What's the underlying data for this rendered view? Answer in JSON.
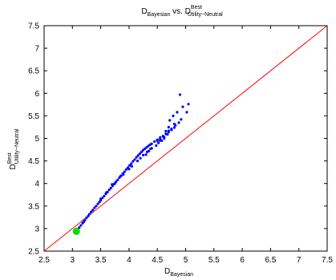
{
  "chart_data": {
    "type": "scatter",
    "title": {
      "main": "D",
      "main_sub": "Bayesian",
      "vs": " vs. D",
      "vs_sup": "Best",
      "vs_sub": "Utility−Neutral"
    },
    "xlabel": {
      "main": "D",
      "sub": "Bayesian"
    },
    "ylabel": {
      "main": "D",
      "sup": "Best",
      "sub": "Utility−Neutral"
    },
    "xlim": [
      2.5,
      7.5
    ],
    "ylim": [
      2.5,
      7.5
    ],
    "xticks": [
      "2.5",
      "3",
      "3.5",
      "4",
      "4.5",
      "5",
      "5.5",
      "6",
      "6.5",
      "7",
      "7.5"
    ],
    "yticks": [
      "2.5",
      "3",
      "3.5",
      "4",
      "4.5",
      "5",
      "5.5",
      "6",
      "6.5",
      "7",
      "7.5"
    ],
    "grid": false,
    "reference_line": {
      "x": [
        2.5,
        7.5
      ],
      "y": [
        2.5,
        7.5
      ],
      "color": "#ff0000"
    },
    "highlight_point": {
      "x": 3.07,
      "y": 2.94,
      "color": "#00dd00"
    },
    "point_color": "#0000ff",
    "series": [
      {
        "x": [
          3.12,
          3.15,
          3.18,
          3.2,
          3.22,
          3.25,
          3.28,
          3.3,
          3.33,
          3.36,
          3.39,
          3.42,
          3.45,
          3.48,
          3.5,
          3.53,
          3.56,
          3.59,
          3.62,
          3.65,
          3.68,
          3.71,
          3.74,
          3.77,
          3.8,
          3.83,
          3.86,
          3.89,
          3.92,
          3.95,
          3.98,
          4.01,
          4.04,
          4.07,
          4.1,
          4.13,
          4.16,
          4.19,
          4.22,
          4.25,
          4.28,
          4.31,
          4.34,
          4.37,
          4.4,
          4.45,
          4.5,
          4.55,
          4.6,
          4.65,
          4.7,
          4.75,
          4.8,
          4.55,
          4.62,
          4.68,
          4.75,
          4.82,
          4.88,
          4.92,
          5.02,
          4.35,
          4.4,
          4.48,
          4.52,
          4.58,
          3.7,
          3.85,
          4.0,
          4.15,
          4.3,
          3.5,
          3.6,
          3.75,
          3.9,
          4.05,
          4.2,
          4.25,
          4.32,
          4.38,
          4.6,
          4.7
        ],
        "y": [
          3.02,
          3.07,
          3.12,
          3.15,
          3.19,
          3.24,
          3.28,
          3.32,
          3.37,
          3.41,
          3.46,
          3.5,
          3.55,
          3.59,
          3.63,
          3.68,
          3.72,
          3.77,
          3.81,
          3.86,
          3.9,
          3.95,
          3.99,
          4.04,
          4.08,
          4.13,
          4.17,
          4.22,
          4.26,
          4.31,
          4.35,
          4.4,
          4.44,
          4.49,
          4.53,
          4.58,
          4.62,
          4.66,
          4.7,
          4.74,
          4.77,
          4.8,
          4.83,
          4.86,
          4.88,
          4.93,
          4.97,
          5.02,
          5.05,
          5.1,
          5.14,
          5.19,
          5.24,
          4.95,
          5.03,
          5.09,
          5.21,
          5.29,
          5.35,
          5.42,
          5.58,
          4.72,
          4.78,
          4.84,
          4.9,
          4.95,
          3.98,
          4.16,
          4.32,
          4.5,
          4.64,
          3.66,
          3.8,
          4.0,
          4.2,
          4.38,
          4.56,
          4.63,
          4.7,
          4.77,
          5.05,
          5.17
        ],
        "extra": [
          [
            4.9,
            5.97
          ],
          [
            5.05,
            5.76
          ],
          [
            4.95,
            5.7
          ],
          [
            4.85,
            5.58
          ],
          [
            4.78,
            5.5
          ],
          [
            4.72,
            5.4
          ],
          [
            4.8,
            5.32
          ],
          [
            4.7,
            5.25
          ],
          [
            4.65,
            5.16
          ],
          [
            4.62,
            5.0
          ],
          [
            4.55,
            4.98
          ],
          [
            4.5,
            4.95
          ]
        ]
      }
    ]
  }
}
